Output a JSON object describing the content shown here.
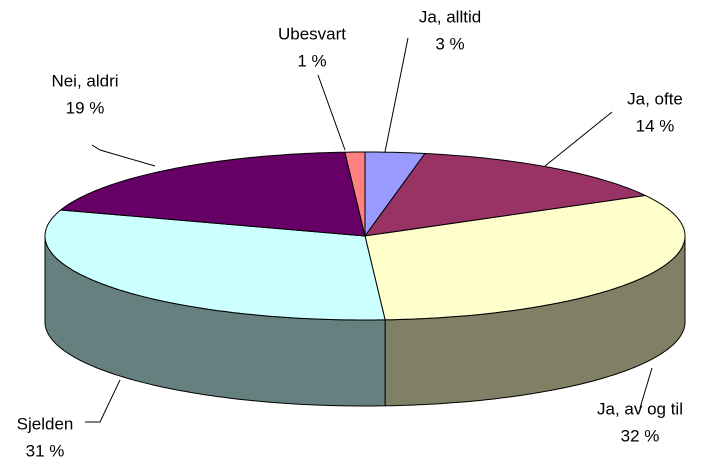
{
  "chart_data": {
    "type": "pie3d",
    "categories": [
      "Ja, alltid",
      "Ja, ofte",
      "Ja, av og til",
      "Sjelden",
      "Nei, aldri",
      "Ubesvart"
    ],
    "values": [
      3,
      14,
      32,
      31,
      19,
      1
    ],
    "value_labels": [
      "3 %",
      "14 %",
      "32 %",
      "31 %",
      "19 %",
      "1 %"
    ],
    "colors": [
      "#9999ff",
      "#993366",
      "#ffffcc",
      "#ccffff",
      "#660066",
      "#ff8080"
    ]
  }
}
